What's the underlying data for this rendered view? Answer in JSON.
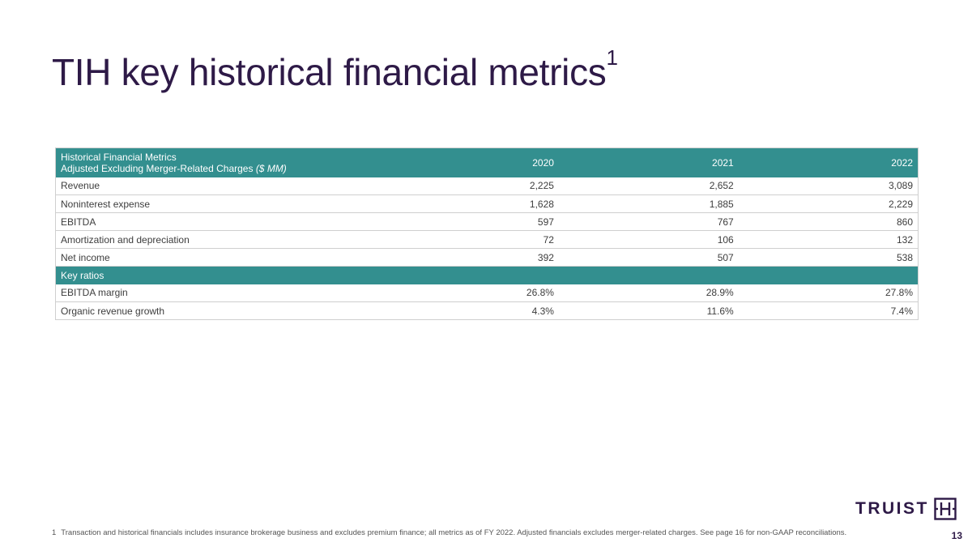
{
  "title": {
    "text": "TIH key historical financial metrics",
    "superscript": "1"
  },
  "table": {
    "header_line1": "Historical Financial Metrics",
    "header_line2": "Adjusted Excluding Merger-Related Charges",
    "header_units": "($ MM)",
    "years": [
      "2020",
      "2021",
      "2022"
    ],
    "rows": [
      {
        "label": "Revenue",
        "values": [
          "2,225",
          "2,652",
          "3,089"
        ]
      },
      {
        "label": "Noninterest expense",
        "values": [
          "1,628",
          "1,885",
          "2,229"
        ]
      },
      {
        "label": "EBITDA",
        "values": [
          "597",
          "767",
          "860"
        ]
      },
      {
        "label": "Amortization and depreciation",
        "values": [
          "72",
          "106",
          "132"
        ]
      },
      {
        "label": "Net income",
        "values": [
          "392",
          "507",
          "538"
        ]
      }
    ],
    "section_label": "Key ratios",
    "ratio_rows": [
      {
        "label": "EBITDA margin",
        "values": [
          "26.8%",
          "28.9%",
          "27.8%"
        ]
      },
      {
        "label": "Organic revenue growth",
        "values": [
          "4.3%",
          "11.6%",
          "7.4%"
        ]
      }
    ]
  },
  "footnote": {
    "number": "1",
    "text": "Transaction and historical financials includes insurance brokerage business and excludes premium finance; all metrics as of FY 2022. Adjusted financials excludes merger-related charges.  See page 16 for non-GAAP reconciliations."
  },
  "logo": {
    "wordmark": "TRUIST"
  },
  "page_number": "13",
  "colors": {
    "header_teal": "#338f8f",
    "brand_purple": "#2e1a47"
  }
}
